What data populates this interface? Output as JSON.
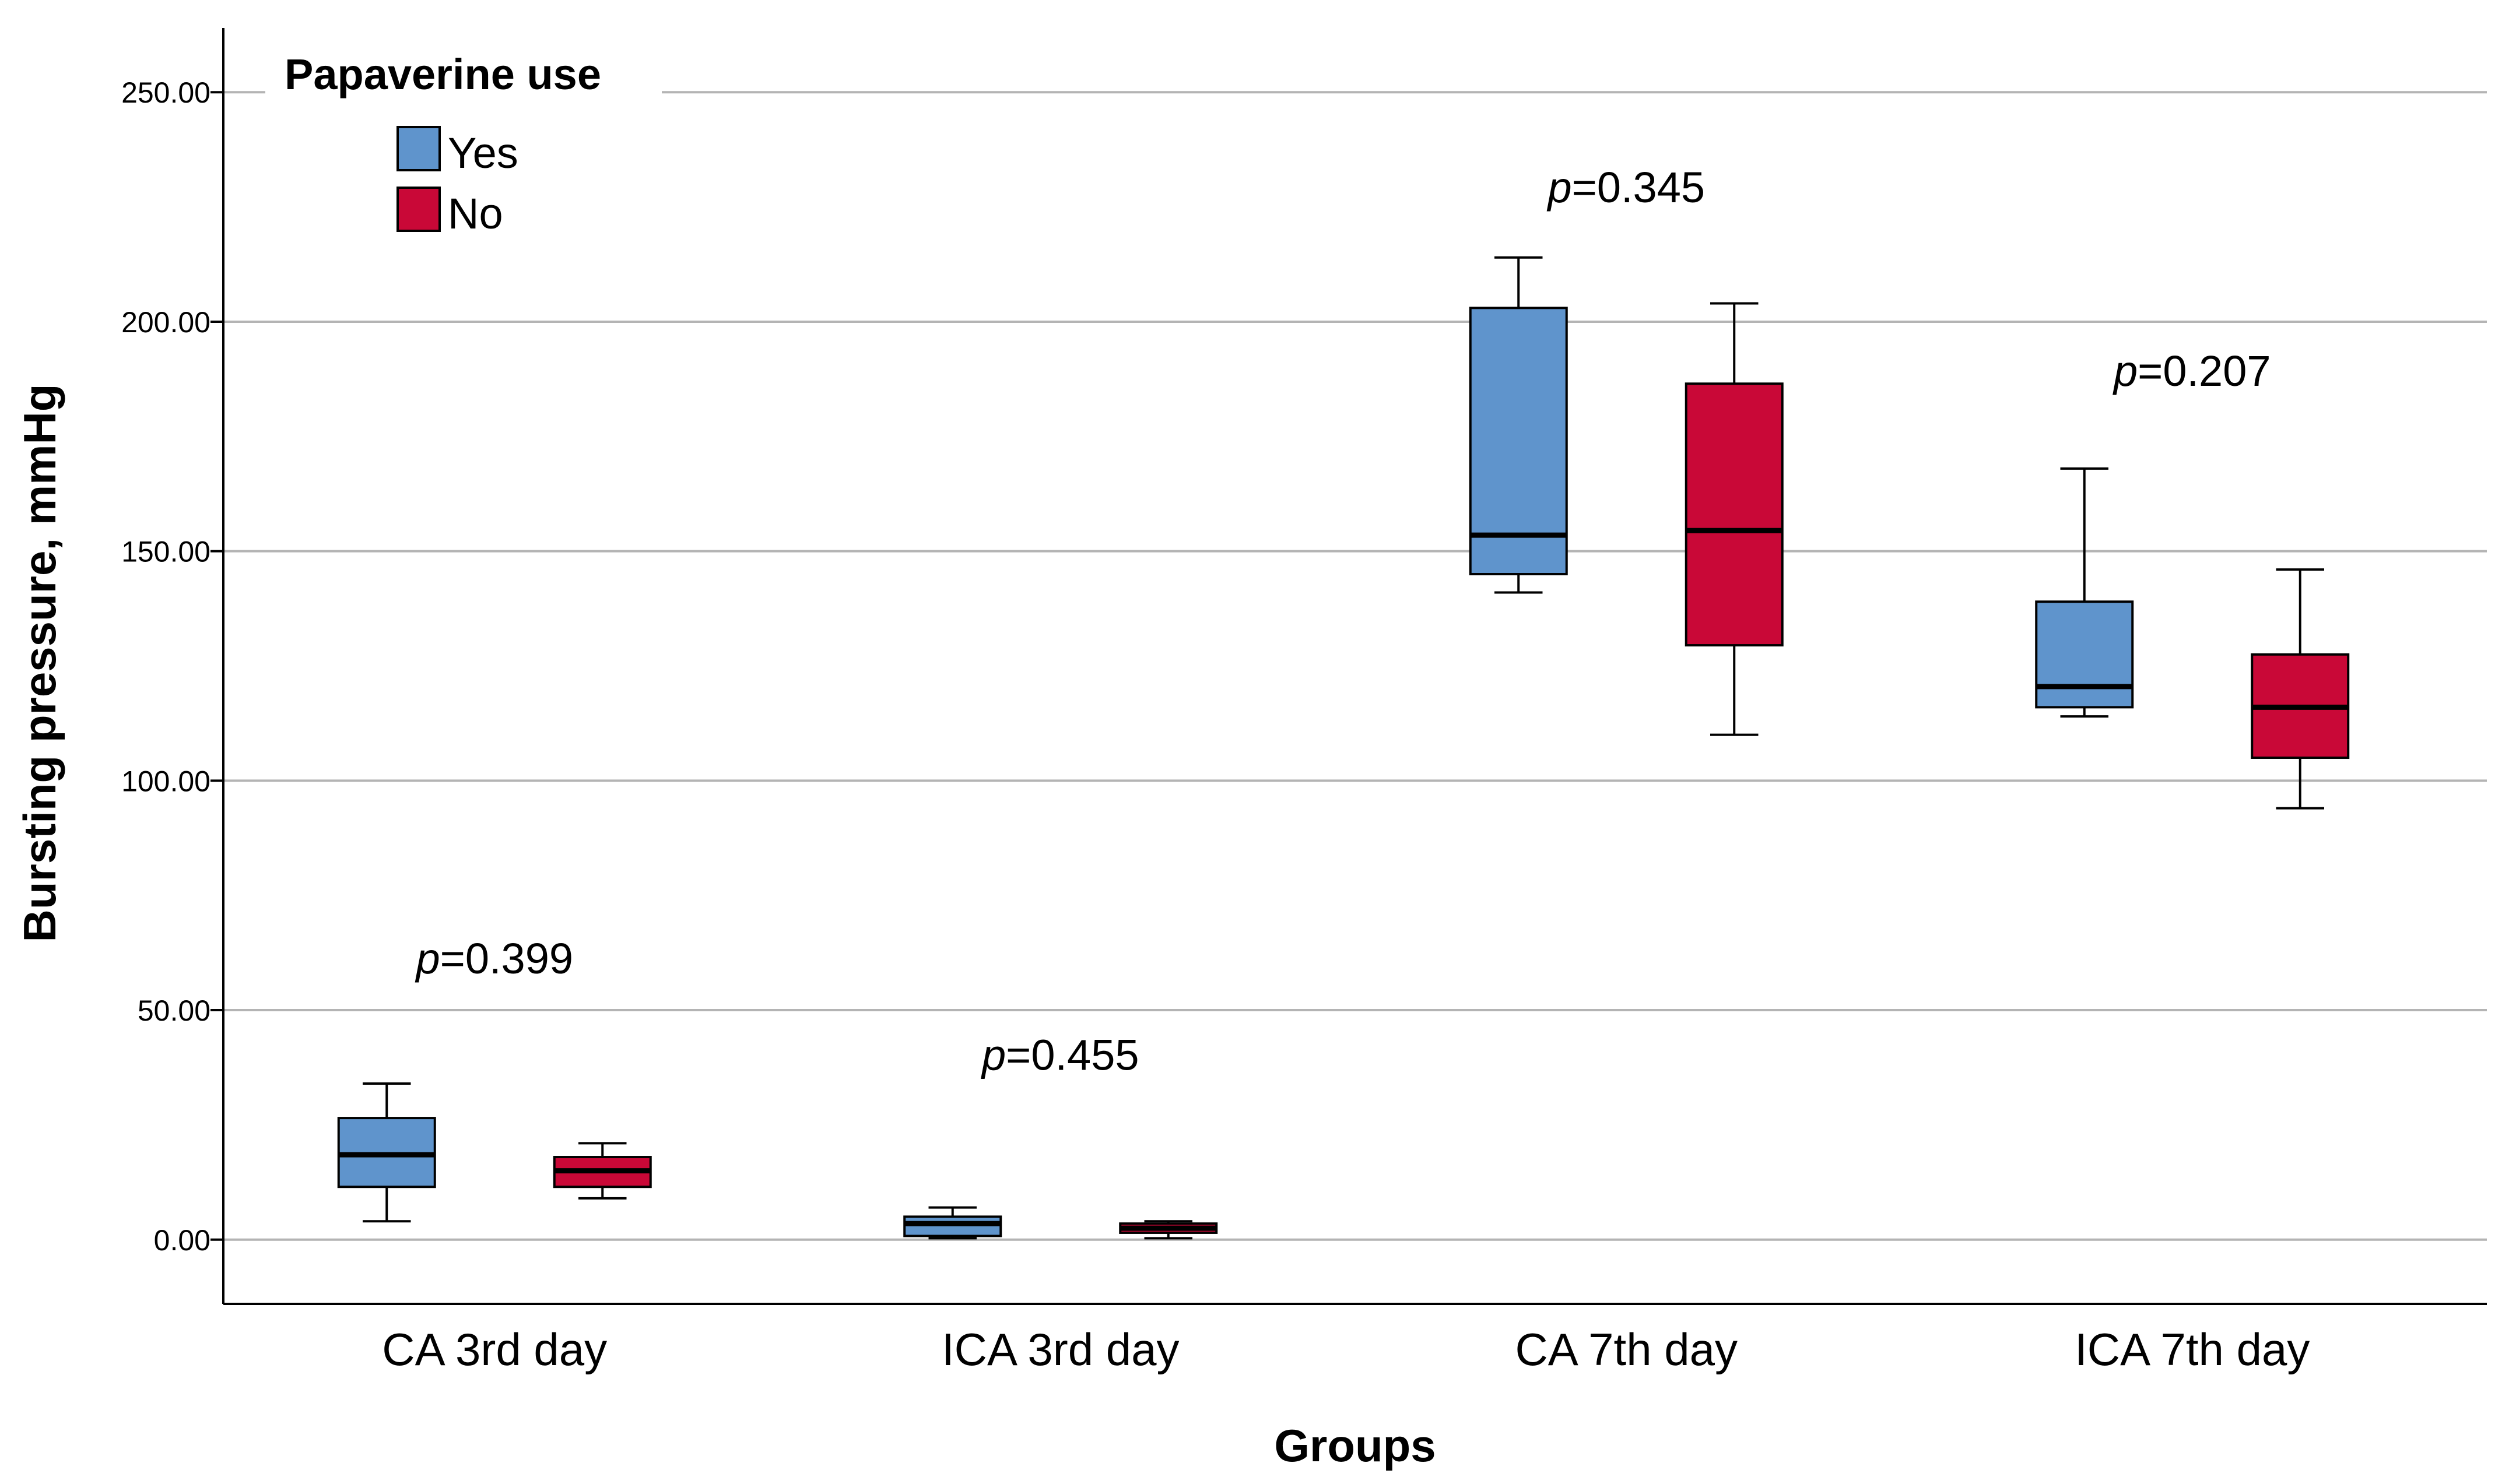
{
  "chart_data": {
    "type": "boxplot",
    "xlabel": "Groups",
    "ylabel": "Bursting pressure, mmHg",
    "ylim": [
      -14,
      264
    ],
    "yticks": [
      0,
      50,
      100,
      150,
      200,
      250
    ],
    "ytick_labels": [
      "0.00",
      "50.00",
      "100.00",
      "150.00",
      "200.00",
      "250.00"
    ],
    "grid": true,
    "legend": {
      "title": "Papaverine use",
      "position": "top-left",
      "entries": [
        {
          "name": "Yes",
          "color": "#5f94cc"
        },
        {
          "name": "No",
          "color": "#c90837"
        }
      ]
    },
    "categories": [
      "CA 3rd day",
      "ICA 3rd day",
      "CA 7th day",
      "ICA 7th day"
    ],
    "series": [
      {
        "name": "Yes",
        "color": "#5f94cc",
        "boxes": [
          {
            "min": 4,
            "q1": 11.5,
            "median": 18.5,
            "q3": 26.5,
            "max": 34
          },
          {
            "min": 0.3,
            "q1": 0.8,
            "median": 3.5,
            "q3": 5,
            "max": 7
          },
          {
            "min": 141,
            "q1": 145,
            "median": 153.5,
            "q3": 203,
            "max": 214
          },
          {
            "min": 114,
            "q1": 116,
            "median": 120.5,
            "q3": 139,
            "max": 168
          }
        ]
      },
      {
        "name": "No",
        "color": "#c90837",
        "boxes": [
          {
            "min": 9,
            "q1": 11.5,
            "median": 15,
            "q3": 18,
            "max": 21
          },
          {
            "min": 0.3,
            "q1": 1.5,
            "median": 2.5,
            "q3": 3.5,
            "max": 4
          },
          {
            "min": 110,
            "q1": 129.5,
            "median": 154.5,
            "q3": 186.5,
            "max": 204
          },
          {
            "min": 94,
            "q1": 105,
            "median": 116,
            "q3": 127.5,
            "max": 146
          }
        ]
      }
    ],
    "annotations": [
      {
        "group": "CA 3rd day",
        "prefix": "p",
        "value": "=0.399",
        "y": 58
      },
      {
        "group": "ICA 3rd day",
        "prefix": "p",
        "value": "=0.455",
        "y": 37
      },
      {
        "group": "CA 7th day",
        "prefix": "p",
        "value": "=0.345",
        "y": 226
      },
      {
        "group": "ICA 7th day",
        "prefix": "p",
        "value": "=0.207",
        "y": 186
      }
    ]
  }
}
